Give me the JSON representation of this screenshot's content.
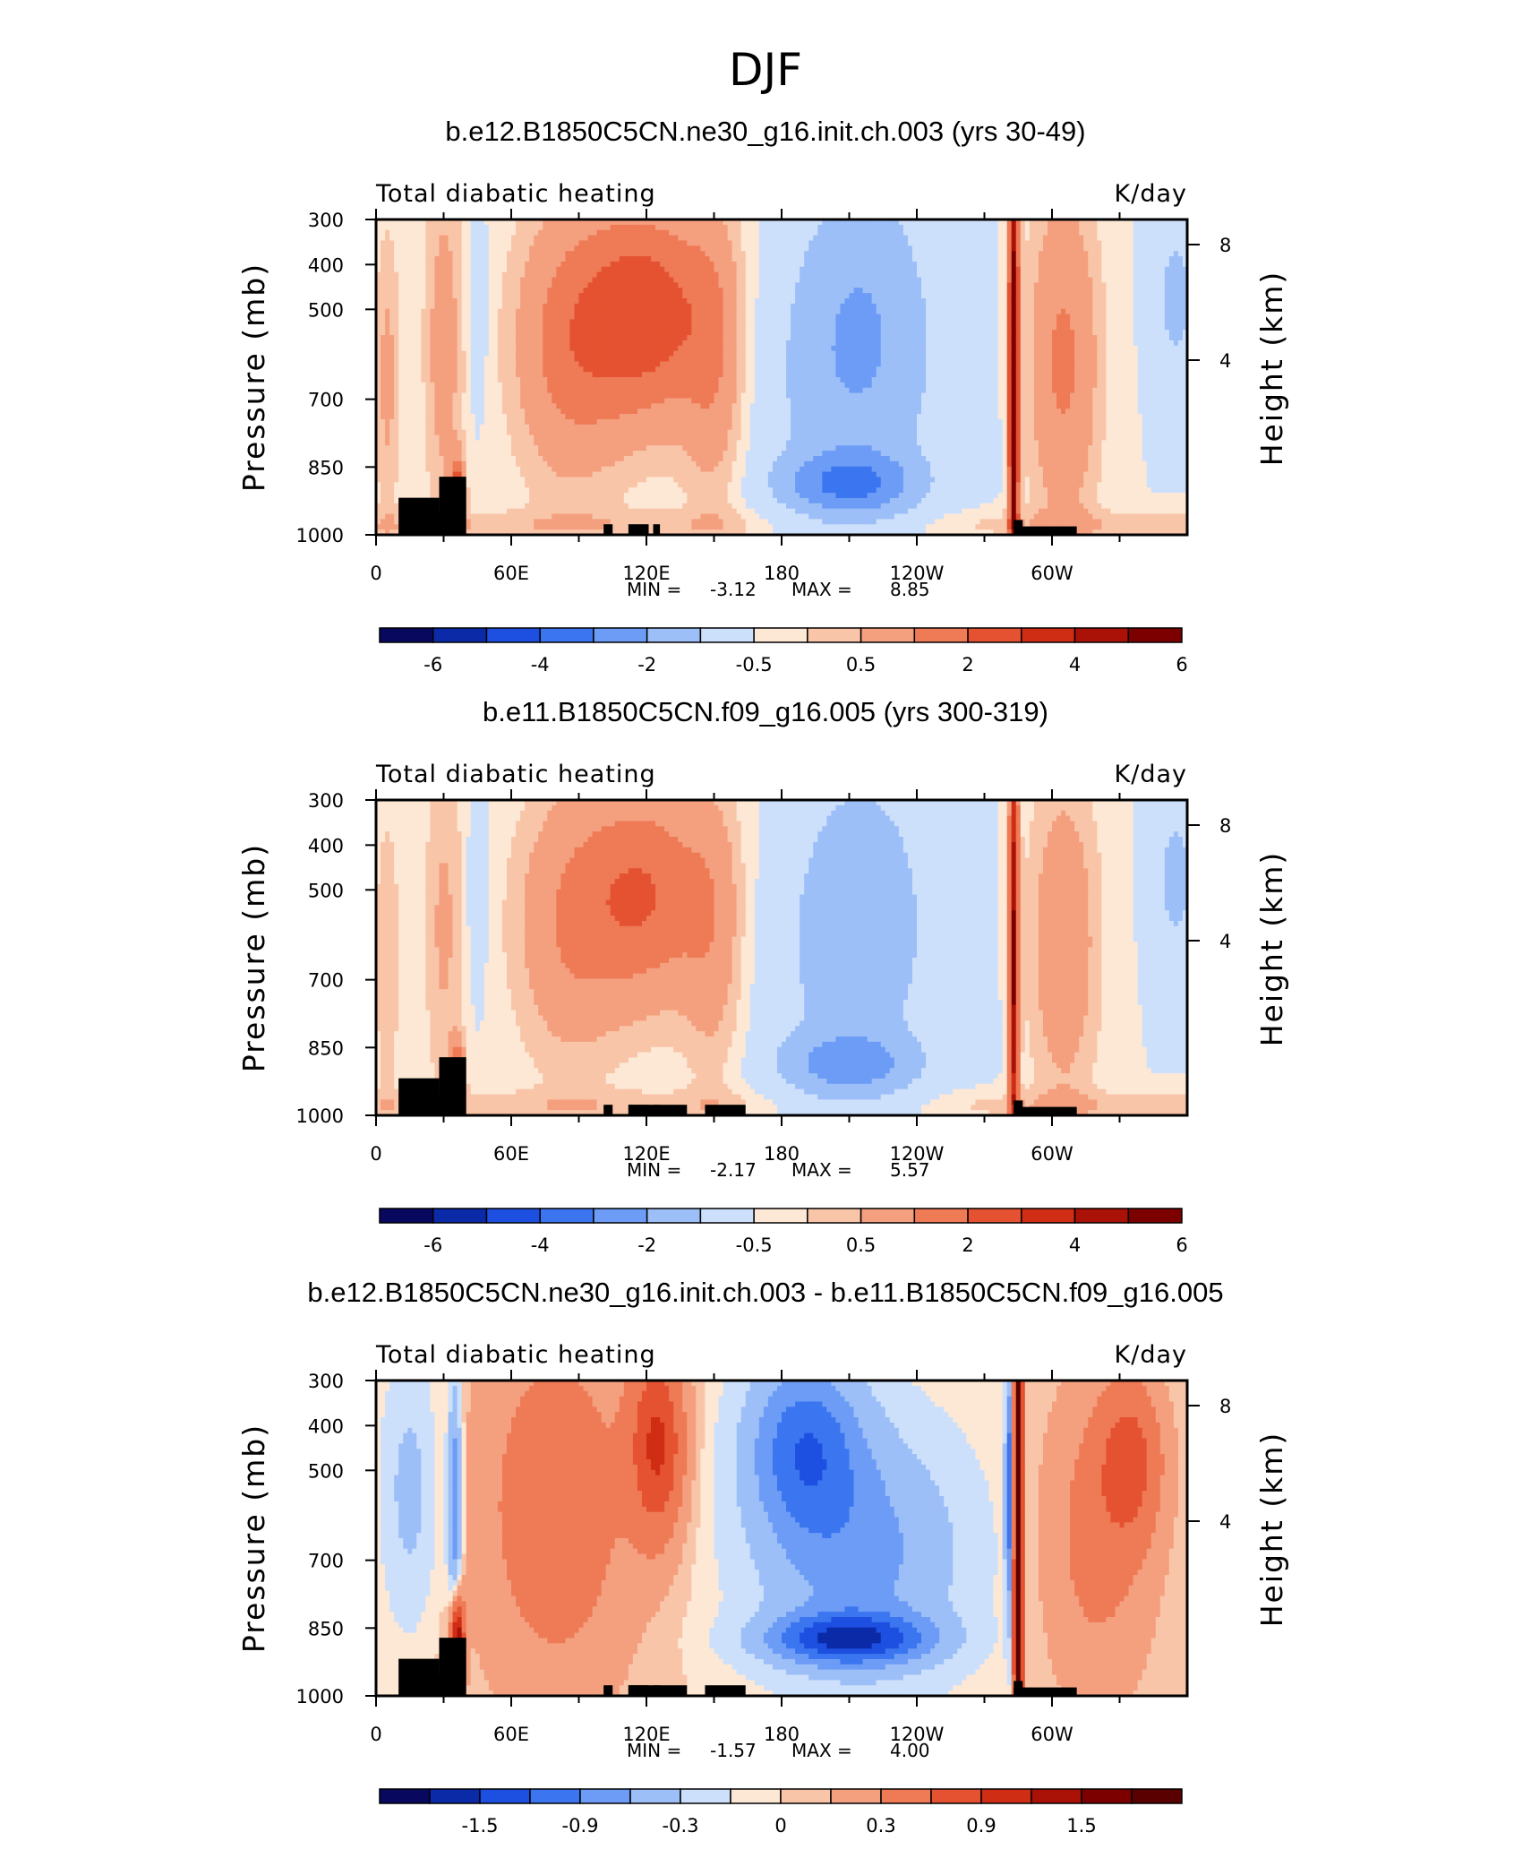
{
  "figure": {
    "season": "DJF"
  },
  "chart_data": [
    {
      "type": "heatmap",
      "title": "b.e12.B1850C5CN.ne30_g16.init.ch.003 (yrs 30-49)",
      "left_label": "Total diabatic heating",
      "right_label": "K/day",
      "ylabel": "Pressure (mb)",
      "ylabel_right": "Height (km)",
      "x_ticks": [
        "0",
        "60E",
        "120E",
        "180",
        "120W",
        "60W"
      ],
      "y_ticks": [
        "300",
        "400",
        "500",
        "700",
        "850",
        "1000"
      ],
      "height_ticks": [
        "8",
        "4"
      ],
      "xlim": [
        0,
        360
      ],
      "ylim": [
        1000,
        300
      ],
      "min_label": "MIN =",
      "min_value": "-3.12",
      "max_label": "MAX =",
      "max_value": "8.85",
      "colorbar_labels": [
        "-6",
        "-4",
        "-2",
        "-0.5",
        "0.5",
        "2",
        "4",
        "6"
      ],
      "colorbar_colors": [
        "#07085e",
        "#0b2aa8",
        "#1d4fe0",
        "#3b76f0",
        "#6c9cf5",
        "#9dbff8",
        "#cde0fb",
        "#fde8d6",
        "#f9c5a8",
        "#f4a07f",
        "#ef7a56",
        "#e45231",
        "#cf2d14",
        "#aa1208",
        "#7c0000"
      ]
    },
    {
      "type": "heatmap",
      "title": "b.e11.B1850C5CN.f09_g16.005 (yrs 300-319)",
      "left_label": "Total diabatic heating",
      "right_label": "K/day",
      "ylabel": "Pressure (mb)",
      "ylabel_right": "Height (km)",
      "x_ticks": [
        "0",
        "60E",
        "120E",
        "180",
        "120W",
        "60W"
      ],
      "y_ticks": [
        "300",
        "400",
        "500",
        "700",
        "850",
        "1000"
      ],
      "height_ticks": [
        "8",
        "4"
      ],
      "xlim": [
        0,
        360
      ],
      "ylim": [
        1000,
        300
      ],
      "min_label": "MIN =",
      "min_value": "-2.17",
      "max_label": "MAX =",
      "max_value": "5.57",
      "colorbar_labels": [
        "-6",
        "-4",
        "-2",
        "-0.5",
        "0.5",
        "2",
        "4",
        "6"
      ],
      "colorbar_colors": [
        "#07085e",
        "#0b2aa8",
        "#1d4fe0",
        "#3b76f0",
        "#6c9cf5",
        "#9dbff8",
        "#cde0fb",
        "#fde8d6",
        "#f9c5a8",
        "#f4a07f",
        "#ef7a56",
        "#e45231",
        "#cf2d14",
        "#aa1208",
        "#7c0000"
      ]
    },
    {
      "type": "heatmap",
      "title": "b.e12.B1850C5CN.ne30_g16.init.ch.003 - b.e11.B1850C5CN.f09_g16.005",
      "left_label": "Total diabatic heating",
      "right_label": "K/day",
      "ylabel": "Pressure (mb)",
      "ylabel_right": "Height (km)",
      "x_ticks": [
        "0",
        "60E",
        "120E",
        "180",
        "120W",
        "60W"
      ],
      "y_ticks": [
        "300",
        "400",
        "500",
        "700",
        "850",
        "1000"
      ],
      "height_ticks": [
        "8",
        "4"
      ],
      "xlim": [
        0,
        360
      ],
      "ylim": [
        1000,
        300
      ],
      "min_label": "MIN =",
      "min_value": "-1.57",
      "max_label": "MAX =",
      "max_value": "4.00",
      "colorbar_labels": [
        "-1.5",
        "-0.9",
        "-0.3",
        "0",
        "0.3",
        "0.9",
        "1.5"
      ],
      "colorbar_colors": [
        "#07085e",
        "#0b2aa8",
        "#1d4fe0",
        "#3b76f0",
        "#6c9cf5",
        "#9dbff8",
        "#cde0fb",
        "#fde8d6",
        "#f9c5a8",
        "#f4a07f",
        "#ef7a56",
        "#e45231",
        "#cf2d14",
        "#aa1208",
        "#7c0000",
        "#5a0000"
      ]
    }
  ]
}
